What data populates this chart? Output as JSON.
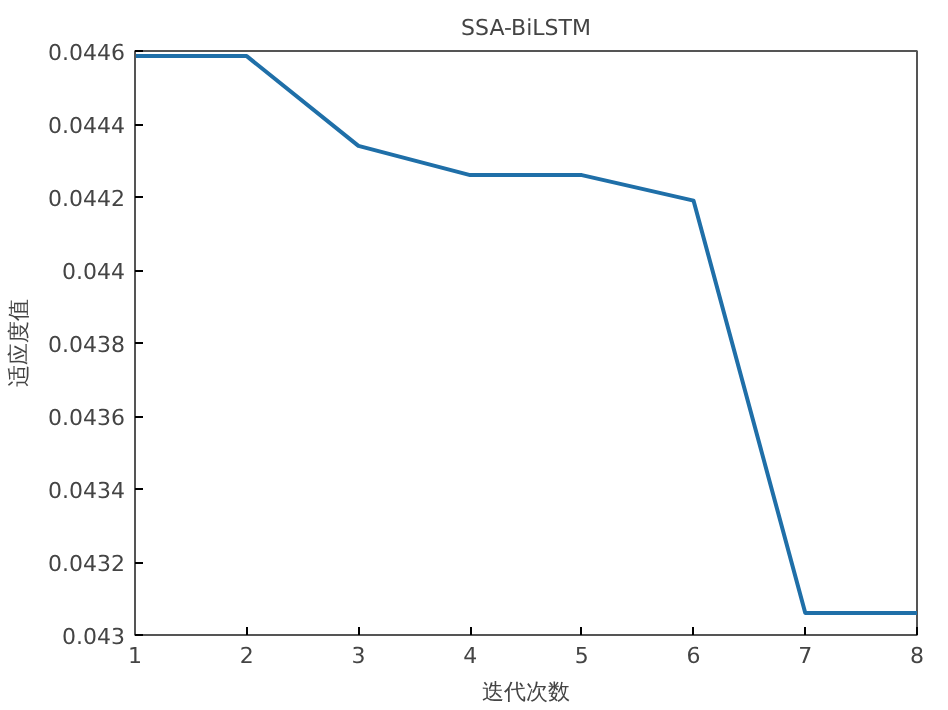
{
  "chart_data": {
    "type": "line",
    "title": "SSA-BiLSTM",
    "xlabel": "迭代次数",
    "ylabel": "适应度值",
    "x": [
      1,
      2,
      3,
      4,
      5,
      6,
      7,
      8
    ],
    "series": [
      {
        "color": "#1f6fa8",
        "values": [
          0.044586,
          0.044586,
          0.04434,
          0.04426,
          0.04426,
          0.04419,
          0.04306,
          0.04306
        ]
      }
    ],
    "xlim": [
      1,
      8
    ],
    "xticks": [
      1,
      2,
      3,
      4,
      5,
      6,
      7,
      8
    ],
    "ylim": [
      0.043,
      0.0446
    ],
    "yticks": [
      0.043,
      0.0432,
      0.0434,
      0.0436,
      0.0438,
      0.044,
      0.0442,
      0.0444,
      0.0446
    ],
    "grid": false,
    "marker": "none",
    "line_style": "solid"
  }
}
